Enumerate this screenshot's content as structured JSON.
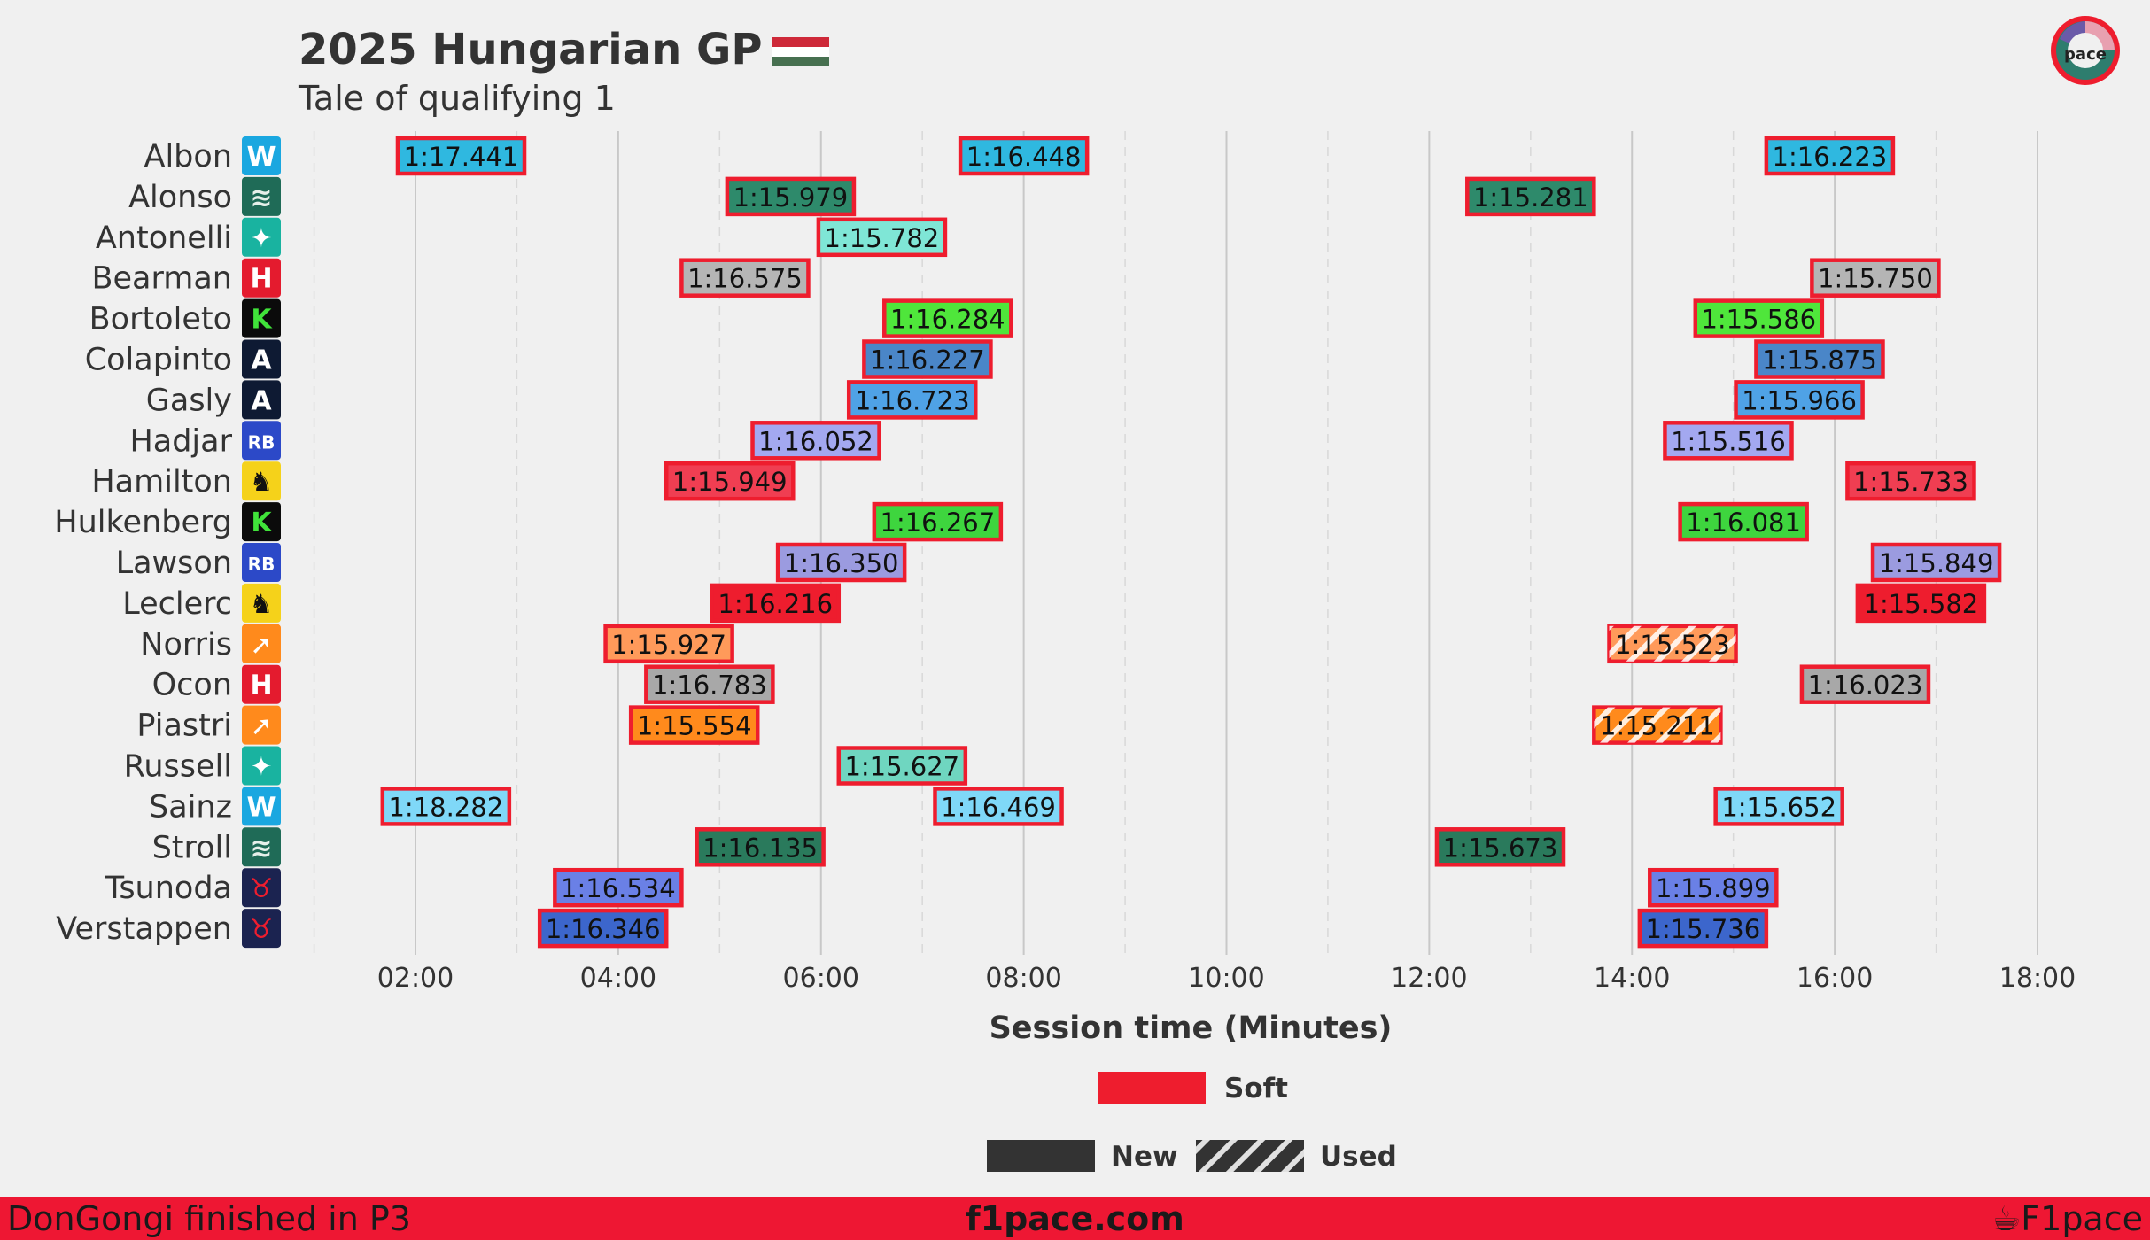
{
  "colors": {
    "background": "#f0f0f0",
    "soft": "#ee1d2e",
    "footer": "#ee1733",
    "grid_major": "#c8c8c8",
    "grid_minor": "#d8d8d8",
    "text": "#333333"
  },
  "footer": {
    "left": "DonGongi finished in P3",
    "center": "f1pace.com",
    "right": "F1pace"
  },
  "logo": {
    "text": "pace"
  },
  "chart_data": {
    "type": "timeline",
    "title": "2025 Hungarian GP",
    "flag": "hungary-flag",
    "subtitle": "Tale of qualifying 1",
    "xlabel": "Session time (Minutes)",
    "xlim": [
      1,
      18.7
    ],
    "xticks": [
      2,
      4,
      6,
      8,
      10,
      12,
      14,
      16,
      18
    ],
    "xtick_labels": [
      "02:00",
      "04:00",
      "06:00",
      "08:00",
      "10:00",
      "12:00",
      "14:00",
      "16:00",
      "18:00"
    ],
    "lap_width_min": 1.25,
    "legend": {
      "compound": [
        {
          "label": "Soft",
          "color": "#ee1d2e"
        }
      ],
      "tyre_age": [
        {
          "label": "New",
          "style": "solid"
        },
        {
          "label": "Used",
          "style": "hatched"
        }
      ]
    },
    "drivers": [
      {
        "name": "Albon",
        "team_icon": "williams-icon",
        "color": "#2fb8e0",
        "laps": [
          {
            "t": 2.45,
            "label": "1:17.441",
            "used": false
          },
          {
            "t": 8.0,
            "label": "1:16.448",
            "used": false
          },
          {
            "t": 15.95,
            "label": "1:16.223",
            "used": false
          }
        ]
      },
      {
        "name": "Alonso",
        "team_icon": "aston-martin-icon",
        "color": "#2e8a6b",
        "laps": [
          {
            "t": 5.7,
            "label": "1:15.979",
            "used": false
          },
          {
            "t": 13.0,
            "label": "1:15.281",
            "used": false
          }
        ]
      },
      {
        "name": "Antonelli",
        "team_icon": "mercedes-icon",
        "color": "#7fe6d6",
        "laps": [
          {
            "t": 6.6,
            "label": "1:15.782",
            "used": false
          }
        ]
      },
      {
        "name": "Bearman",
        "team_icon": "haas-icon",
        "color": "#b5b5b5",
        "laps": [
          {
            "t": 5.25,
            "label": "1:16.575",
            "used": false
          },
          {
            "t": 16.4,
            "label": "1:15.750",
            "used": false
          }
        ]
      },
      {
        "name": "Bortoleto",
        "team_icon": "sauber-icon",
        "color": "#4fe63b",
        "laps": [
          {
            "t": 7.25,
            "label": "1:16.284",
            "used": false
          },
          {
            "t": 15.25,
            "label": "1:15.586",
            "used": false
          }
        ]
      },
      {
        "name": "Colapinto",
        "team_icon": "alpine-icon",
        "color": "#4a86c8",
        "laps": [
          {
            "t": 7.05,
            "label": "1:16.227",
            "used": false
          },
          {
            "t": 15.85,
            "label": "1:15.875",
            "used": false
          }
        ]
      },
      {
        "name": "Gasly",
        "team_icon": "alpine-icon",
        "color": "#4fa2e6",
        "laps": [
          {
            "t": 6.9,
            "label": "1:16.723",
            "used": false
          },
          {
            "t": 15.65,
            "label": "1:15.966",
            "used": false
          }
        ]
      },
      {
        "name": "Hadjar",
        "team_icon": "racing-bulls-icon",
        "color": "#a3a8f0",
        "laps": [
          {
            "t": 5.95,
            "label": "1:16.052",
            "used": false
          },
          {
            "t": 14.95,
            "label": "1:15.516",
            "used": false
          }
        ]
      },
      {
        "name": "Hamilton",
        "team_icon": "ferrari-icon",
        "color": "#f03e52",
        "laps": [
          {
            "t": 5.1,
            "label": "1:15.949",
            "used": false
          },
          {
            "t": 16.75,
            "label": "1:15.733",
            "used": false
          }
        ]
      },
      {
        "name": "Hulkenberg",
        "team_icon": "sauber-icon",
        "color": "#3ed53e",
        "laps": [
          {
            "t": 7.15,
            "label": "1:16.267",
            "used": false
          },
          {
            "t": 15.1,
            "label": "1:16.081",
            "used": false
          }
        ]
      },
      {
        "name": "Lawson",
        "team_icon": "racing-bulls-icon",
        "color": "#9b9be0",
        "laps": [
          {
            "t": 6.2,
            "label": "1:16.350",
            "used": false
          },
          {
            "t": 17.0,
            "label": "1:15.849",
            "used": false
          }
        ]
      },
      {
        "name": "Leclerc",
        "team_icon": "ferrari-icon",
        "color": "#ee1d2e",
        "laps": [
          {
            "t": 5.55,
            "label": "1:16.216",
            "used": false
          },
          {
            "t": 16.85,
            "label": "1:15.582",
            "used": false
          }
        ]
      },
      {
        "name": "Norris",
        "team_icon": "mclaren-icon",
        "color": "#ff9a5a",
        "laps": [
          {
            "t": 4.5,
            "label": "1:15.927",
            "used": false
          },
          {
            "t": 14.4,
            "label": "1:15.523",
            "used": true
          }
        ]
      },
      {
        "name": "Ocon",
        "team_icon": "haas-icon",
        "color": "#a8a8a8",
        "laps": [
          {
            "t": 4.9,
            "label": "1:16.783",
            "used": false
          },
          {
            "t": 16.3,
            "label": "1:16.023",
            "used": false
          }
        ]
      },
      {
        "name": "Piastri",
        "team_icon": "mclaren-icon",
        "color": "#ff8a1c",
        "laps": [
          {
            "t": 4.75,
            "label": "1:15.554",
            "used": false
          },
          {
            "t": 14.25,
            "label": "1:15.211",
            "used": true
          }
        ]
      },
      {
        "name": "Russell",
        "team_icon": "mercedes-icon",
        "color": "#6fd6c0",
        "laps": [
          {
            "t": 6.8,
            "label": "1:15.627",
            "used": false
          }
        ]
      },
      {
        "name": "Sainz",
        "team_icon": "williams-icon",
        "color": "#7fd8f8",
        "laps": [
          {
            "t": 2.3,
            "label": "1:18.282",
            "used": false
          },
          {
            "t": 7.75,
            "label": "1:16.469",
            "used": false
          },
          {
            "t": 15.45,
            "label": "1:15.652",
            "used": false
          }
        ]
      },
      {
        "name": "Stroll",
        "team_icon": "aston-martin-icon",
        "color": "#2a7a5c",
        "laps": [
          {
            "t": 5.4,
            "label": "1:16.135",
            "used": false
          },
          {
            "t": 12.7,
            "label": "1:15.673",
            "used": false
          }
        ]
      },
      {
        "name": "Tsunoda",
        "team_icon": "red-bull-icon",
        "color": "#6a80e6",
        "laps": [
          {
            "t": 4.0,
            "label": "1:16.534",
            "used": false
          },
          {
            "t": 14.8,
            "label": "1:15.899",
            "used": false
          }
        ]
      },
      {
        "name": "Verstappen",
        "team_icon": "red-bull-icon",
        "color": "#3c66cc",
        "laps": [
          {
            "t": 3.85,
            "label": "1:16.346",
            "used": false
          },
          {
            "t": 14.7,
            "label": "1:15.736",
            "used": false
          }
        ]
      }
    ]
  }
}
